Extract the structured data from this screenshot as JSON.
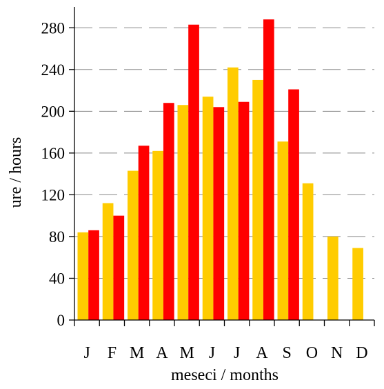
{
  "chart_data": {
    "type": "bar",
    "categories": [
      "J",
      "F",
      "M",
      "A",
      "M",
      "J",
      "J",
      "A",
      "S",
      "O",
      "N",
      "D"
    ],
    "series": [
      {
        "values": [
          84,
          112,
          143,
          162,
          206,
          214,
          242,
          230,
          171,
          131,
          80,
          69
        ],
        "color": "#FFCC00"
      },
      {
        "values": [
          86,
          100,
          167,
          208,
          283,
          204,
          209,
          288,
          221,
          null,
          null,
          null
        ],
        "color": "#FF0000"
      }
    ],
    "xlabel": "meseci / months",
    "ylabel": "ure / hours",
    "ylim": [
      0,
      300
    ],
    "yticks": [
      0,
      40,
      80,
      120,
      160,
      200,
      240,
      280
    ],
    "grid": true
  }
}
